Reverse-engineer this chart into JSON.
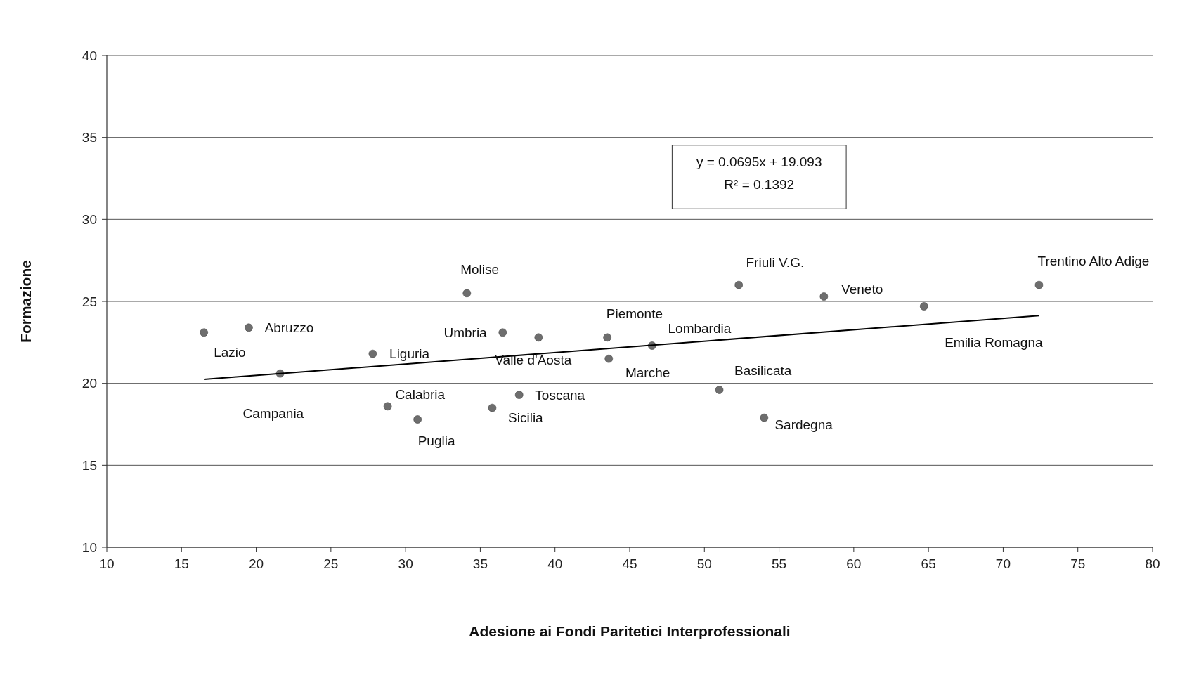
{
  "chart_data": {
    "type": "scatter",
    "xlabel": "Adesione ai Fondi Paritetici Interprofessionali",
    "ylabel": "Formazione",
    "xlim": [
      10,
      80
    ],
    "ylim": [
      10,
      40
    ],
    "xticks": [
      10,
      15,
      20,
      25,
      30,
      35,
      40,
      45,
      50,
      55,
      60,
      65,
      70,
      75,
      80
    ],
    "yticks": [
      10,
      15,
      20,
      25,
      30,
      35,
      40
    ],
    "grid": "y",
    "series": [
      {
        "marker": "circle",
        "color": "#6e6e6e",
        "x": [
          16.5,
          19.5,
          21.6,
          27.8,
          28.8,
          30.8,
          34.1,
          36.5,
          35.8,
          37.6,
          38.9,
          43.5,
          43.6,
          46.5,
          51.0,
          54.0,
          52.3,
          58.0,
          64.7,
          72.4
        ],
        "values": [
          23.1,
          23.4,
          20.6,
          21.8,
          18.6,
          17.8,
          25.5,
          23.1,
          18.5,
          19.3,
          22.8,
          22.8,
          21.5,
          22.3,
          19.6,
          17.9,
          26.0,
          25.3,
          24.7,
          26.0
        ]
      },
      {
        "type": "line",
        "marker": "none",
        "color": "#000000",
        "line_style": "solid",
        "x": [
          16.5,
          72.4
        ],
        "values": [
          20.24,
          24.13
        ]
      }
    ],
    "annotations": [
      {
        "text": "Lazio",
        "x": 16.5,
        "y": 23.1
      },
      {
        "text": "Abruzzo",
        "x": 19.5,
        "y": 23.4
      },
      {
        "text": "Campania",
        "x": 21.6,
        "y": 20.6
      },
      {
        "text": "Liguria",
        "x": 27.8,
        "y": 21.8
      },
      {
        "text": "Calabria",
        "x": 28.8,
        "y": 18.6
      },
      {
        "text": "Puglia",
        "x": 30.8,
        "y": 17.8
      },
      {
        "text": "Molise",
        "x": 34.1,
        "y": 25.5
      },
      {
        "text": "Umbria",
        "x": 36.5,
        "y": 23.1
      },
      {
        "text": "Sicilia",
        "x": 35.8,
        "y": 18.5
      },
      {
        "text": "Toscana",
        "x": 37.6,
        "y": 19.3
      },
      {
        "text": "Valle d'Aosta",
        "x": 38.9,
        "y": 22.8
      },
      {
        "text": "Piemonte",
        "x": 43.5,
        "y": 22.8
      },
      {
        "text": "Marche",
        "x": 43.6,
        "y": 21.5
      },
      {
        "text": "Lombardia",
        "x": 46.5,
        "y": 22.3
      },
      {
        "text": "Basilicata",
        "x": 51.0,
        "y": 19.6
      },
      {
        "text": "Sardegna",
        "x": 54.0,
        "y": 17.9
      },
      {
        "text": "Friuli V.G.",
        "x": 52.3,
        "y": 26.0
      },
      {
        "text": "Veneto",
        "x": 58.0,
        "y": 25.3
      },
      {
        "text": "Emilia Romagna",
        "x": 64.7,
        "y": 24.7
      },
      {
        "text": "Trentino Alto Adige",
        "x": 72.4,
        "y": 26.0
      },
      "y = 0.0695x + 19.093",
      "R² = 0.1392"
    ]
  }
}
